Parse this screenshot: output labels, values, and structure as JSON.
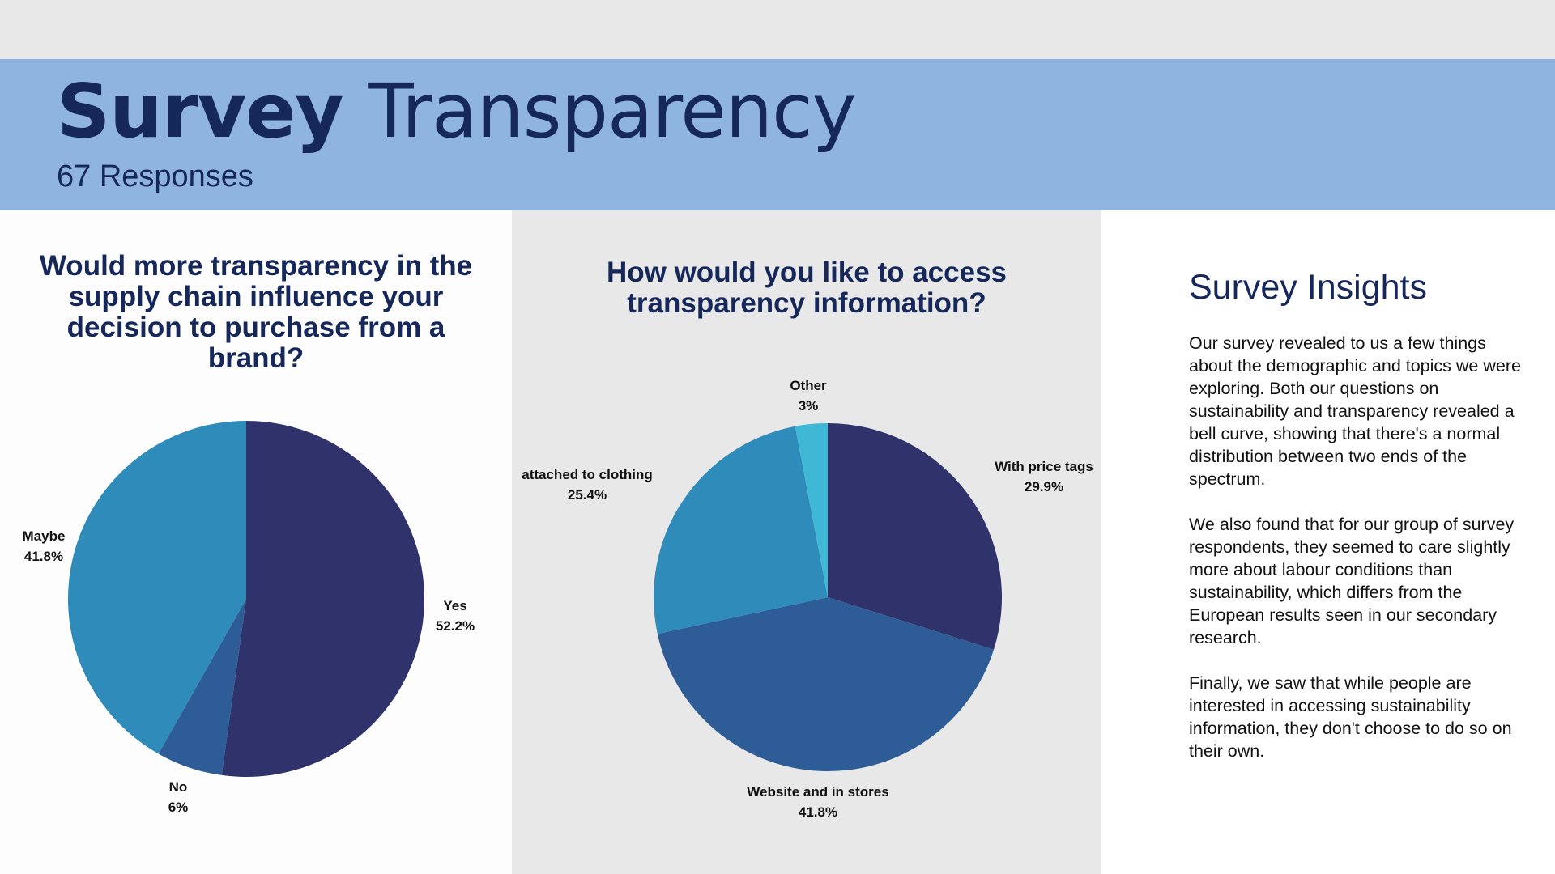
{
  "header": {
    "title_bold": "Survey",
    "title_light": "Transparency",
    "subtitle": "67 Responses"
  },
  "insights": {
    "title": "Survey Insights",
    "paragraphs": [
      "Our survey revealed to us a few things about the demographic and topics we were exploring. Both our questions on sustainability and transparency revealed a bell curve, showing that there's a normal distribution between two ends of the spectrum.",
      "We also found that for our group of survey respondents, they seemed to care slightly more about labour conditions than sustainability, which differs from the European results seen in our secondary research.",
      "Finally, we saw that while people are interested in accessing sustainability information, they don't choose to do so on their own."
    ]
  },
  "chart_data": [
    {
      "type": "pie",
      "title": "Would more transparency in the supply chain influence your decision to purchase from a brand?",
      "slices": [
        {
          "label": "Yes",
          "value": 52.2,
          "display": "52.2%",
          "color": "#30336b"
        },
        {
          "label": "No",
          "value": 6,
          "display": "6%",
          "color": "#2d5c96"
        },
        {
          "label": "Maybe",
          "value": 41.8,
          "display": "41.8%",
          "color": "#2e8bba"
        }
      ]
    },
    {
      "type": "pie",
      "title": "How would you like to access transparency information?",
      "slices": [
        {
          "label": "With price tags",
          "value": 29.9,
          "display": "29.9%",
          "color": "#30336b"
        },
        {
          "label": "Website and in stores",
          "value": 41.8,
          "display": "41.8%",
          "color": "#2d5c96"
        },
        {
          "label": "attached to clothing",
          "value": 25.4,
          "display": "25.4%",
          "color": "#2e8bba"
        },
        {
          "label": "Other",
          "value": 3,
          "display": "3%",
          "color": "#3fb8d6"
        }
      ]
    }
  ]
}
